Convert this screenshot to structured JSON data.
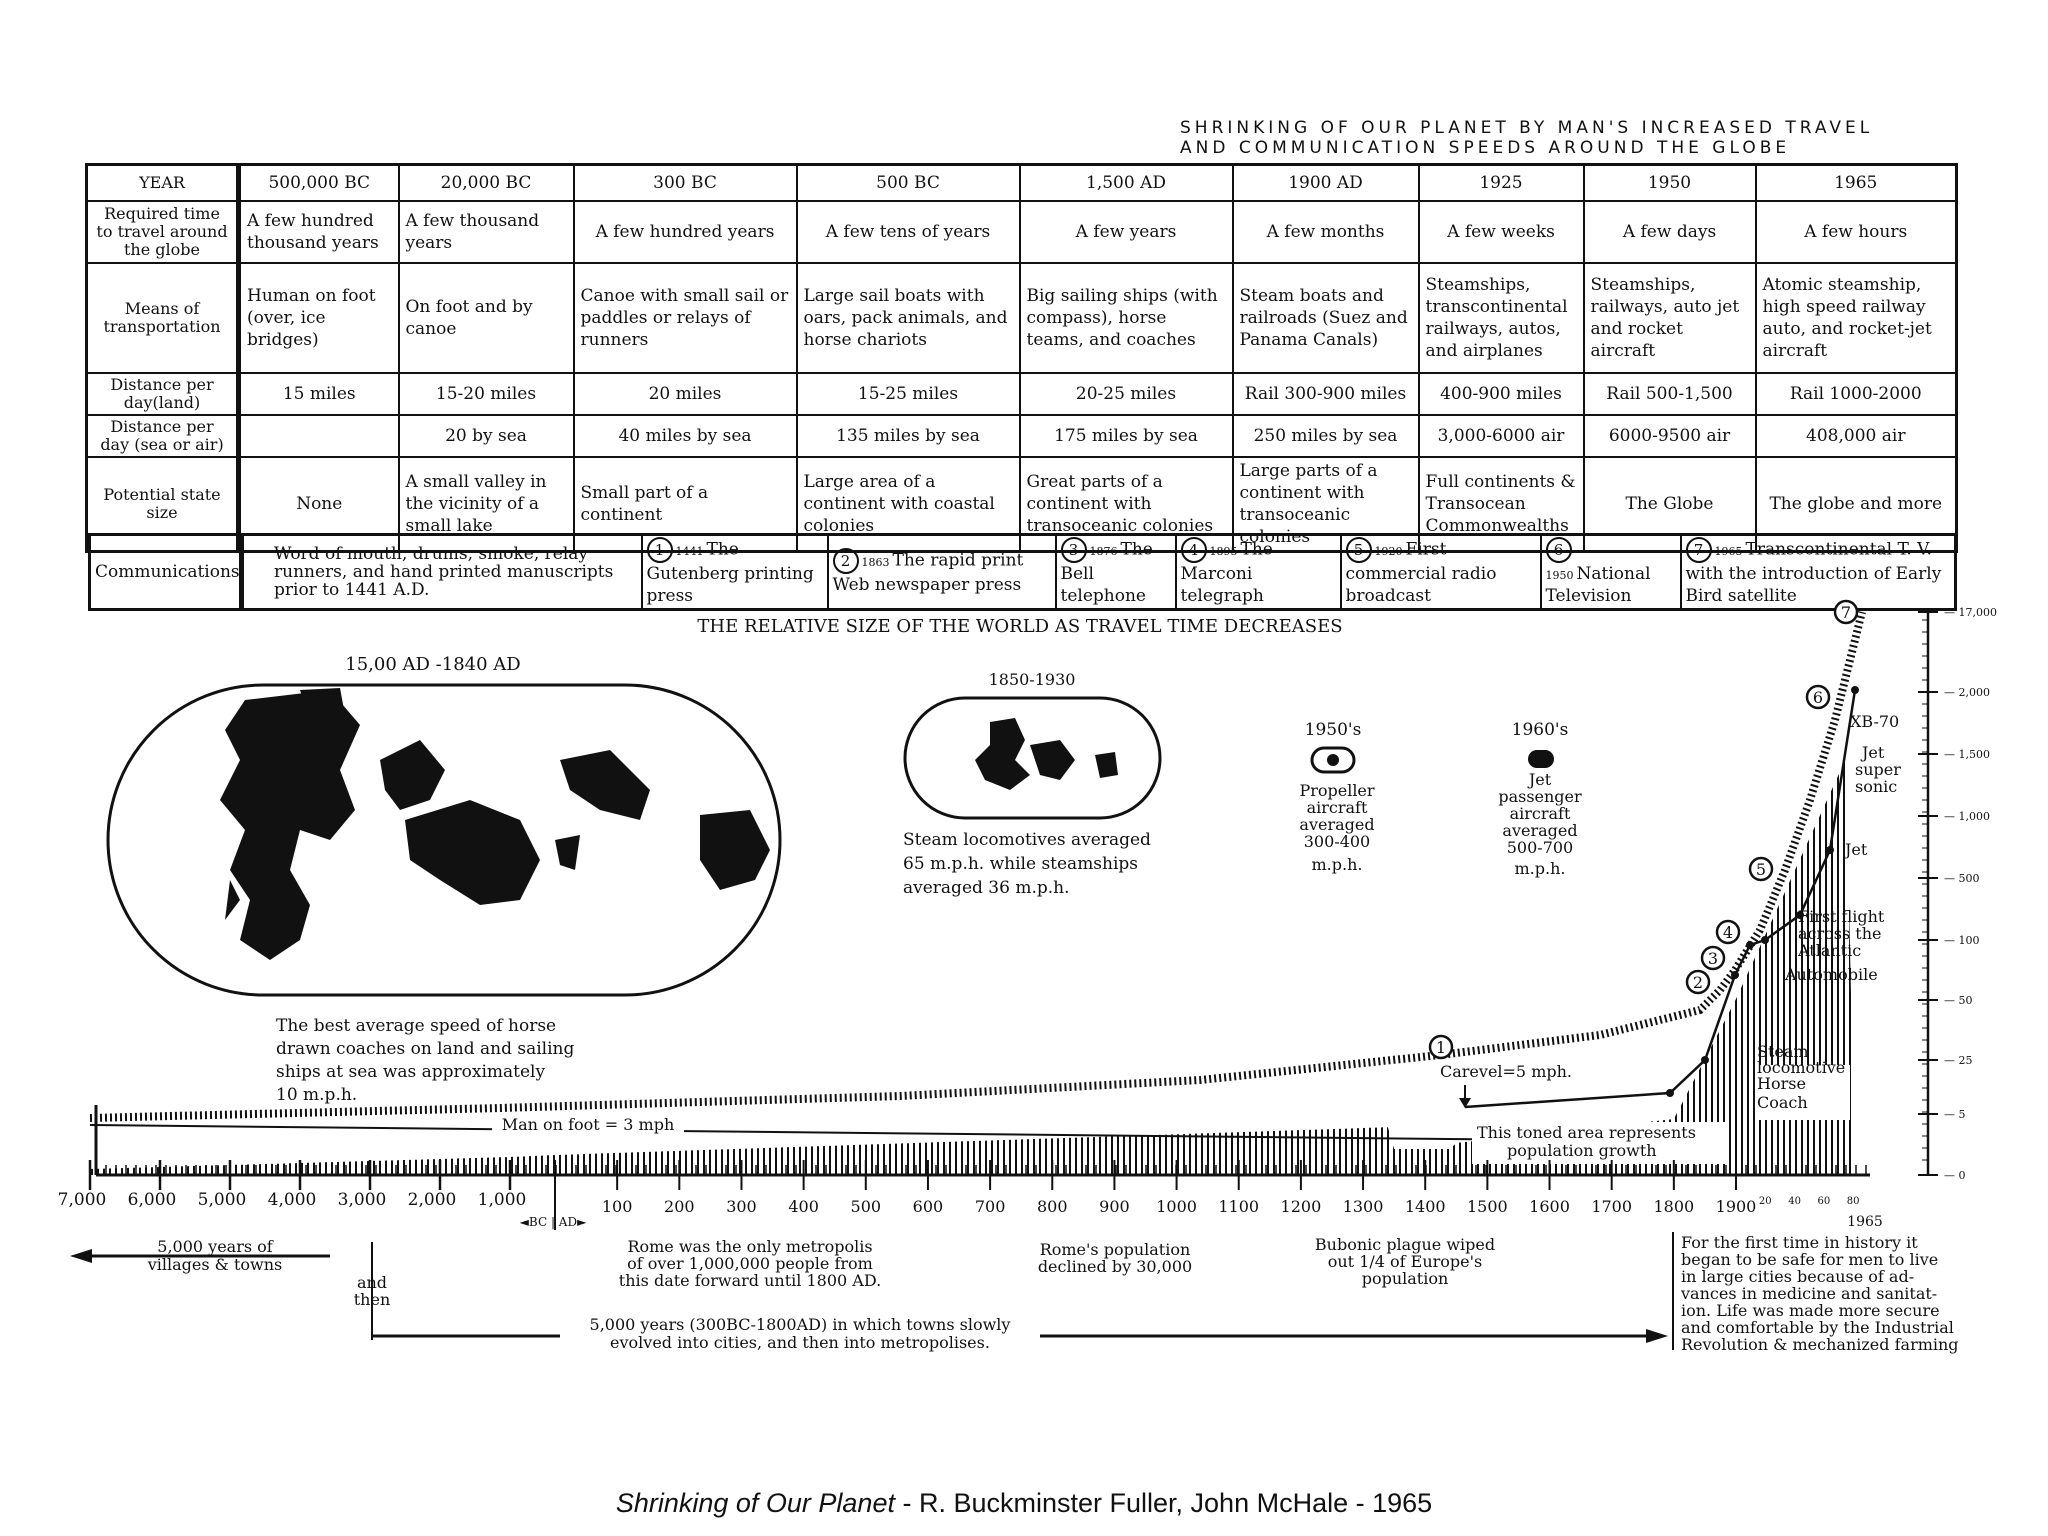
{
  "header": {
    "line1": "SHRINKING OF OUR PLANET BY MAN'S INCREASED TRAVEL",
    "line2": "AND COMMUNICATION SPEEDS AROUND THE GLOBE"
  },
  "table": {
    "corner": "YEAR",
    "years": [
      "500,000 BC",
      "20,000 BC",
      "300 BC",
      "500 BC",
      "1,500 AD",
      "1900 AD",
      "1925",
      "1950",
      "1965"
    ],
    "rows": [
      {
        "label": "Required time to travel around the globe",
        "cells": [
          "A few hundred thousand years",
          "A few thousand years",
          "A few hundred years",
          "A few tens of years",
          "A few years",
          "A few months",
          "A few weeks",
          "A few days",
          "A few hours"
        ]
      },
      {
        "label": "Means of transportation",
        "cells": [
          "Human on foot (over, ice bridges)",
          "On foot and by canoe",
          "Canoe with small sail or paddles or relays of runners",
          "Large sail boats with oars, pack animals, and horse chariots",
          "Big sailing ships (with compass), horse teams, and coaches",
          "Steam boats and railroads (Suez and Panama Canals)",
          "Steamships, transcontinental railways, autos, and airplanes",
          "Steamships, railways, auto jet and rocket aircraft",
          "Atomic steamship, high speed railway auto, and rocket-jet aircraft"
        ]
      },
      {
        "label": "Distance per day(land)",
        "cells": [
          "15 miles",
          "15-20 miles",
          "20 miles",
          "15-25 miles",
          "20-25 miles",
          "Rail 300-900 miles",
          "400-900 miles",
          "Rail 500-1,500",
          "Rail 1000-2000"
        ]
      },
      {
        "label": "Distance per day (sea or air)",
        "cells": [
          "",
          "20 by sea",
          "40 miles by sea",
          "135 miles by sea",
          "175 miles by sea",
          "250 miles by sea",
          "3,000-6000 air",
          "6000-9500 air",
          "408,000 air"
        ]
      },
      {
        "label": "Potential state size",
        "cells": [
          "None",
          "A small valley in the vicinity of a small lake",
          "Small part of a continent",
          "Large area of a continent with coastal colonies",
          "Great parts of a continent with transoceanic colonies",
          "Large parts of a continent with transoceanic colonies",
          "Full continents & Transocean Commonwealths",
          "The Globe",
          "The globe and more"
        ]
      }
    ]
  },
  "communications": {
    "label": "Communications",
    "first": "Word of mouth, drums, smoke, relay runners, and hand printed manuscripts prior to 1441 A.D.",
    "items": [
      {
        "num": "1",
        "year": "1441",
        "text": "The Gutenberg printing press"
      },
      {
        "num": "2",
        "year": "1863",
        "text": "The rapid print Web newspaper press"
      },
      {
        "num": "3",
        "year": "1876",
        "text": "The Bell telephone"
      },
      {
        "num": "4",
        "year": "1895",
        "text": "The Marconi telegraph"
      },
      {
        "num": "5",
        "year": "1920",
        "text": "First commercial radio broadcast"
      },
      {
        "num": "6",
        "year": "1950",
        "text": "National Television"
      },
      {
        "num": "7",
        "year": "1965",
        "text": "Transcontinental T. V. with the introduction of Early Bird satellite"
      }
    ]
  },
  "world": {
    "title": "THE RELATIVE SIZE OF THE WORLD AS TRAVEL TIME DECREASES",
    "map1_label": "15,00 AD -1840 AD",
    "map1_caption": [
      "The best average speed of horse",
      "drawn coaches on land and sailing",
      "ships at sea was approximately",
      "10 m.p.h."
    ],
    "map2_label": "1850-1930",
    "map2_caption": [
      "Steam locomotives averaged",
      "65 m.p.h. while steamships",
      "averaged 36 m.p.h."
    ],
    "p1950_label": "1950's",
    "p1950_caption": [
      "Propeller",
      "aircraft",
      "averaged",
      "300-400",
      "m.p.h."
    ],
    "p1960_label": "1960's",
    "p1960_caption": [
      "Jet",
      "passenger",
      "aircraft",
      "averaged",
      "500-700",
      "m.p.h."
    ]
  },
  "chart_data": {
    "type": "line",
    "y_ticks": [
      "17,000",
      "2,000",
      "1,500",
      "1,000",
      "500",
      "100",
      "50",
      "25",
      "5",
      "0"
    ],
    "x_ticks_bc": [
      "7,000",
      "6,000",
      "5,000",
      "4,000",
      "3,000",
      "2,000",
      "1,000"
    ],
    "x_ticks_ad": [
      "100",
      "200",
      "300",
      "400",
      "500",
      "600",
      "700",
      "800",
      "900",
      "1000",
      "1100",
      "1200",
      "1300",
      "1400",
      "1500",
      "1600",
      "1700",
      "1800",
      "1900"
    ],
    "x_ticks_small": [
      "20",
      "40",
      "60",
      "80"
    ],
    "x_marker": "1965",
    "bc_ad_label": "◄BC | AD►",
    "annotations": {
      "man_on_foot": "Man on foot = 3 mph",
      "carevel": "Carevel=5 mph.",
      "toned_area": [
        "This toned area represents",
        "population growth"
      ],
      "horse": "Horse",
      "coach": "Coach",
      "steam": "Steam",
      "locomotive": "locomotive",
      "automobile": "Automobile",
      "first_flight": [
        "First flight",
        "across the",
        "Atlantic"
      ],
      "jet": "Jet",
      "jet_super": [
        "Jet",
        "super",
        "sonic"
      ],
      "xb70": "XB-70"
    },
    "series": [
      {
        "name": "Man on foot = 3 mph",
        "x": [
          -7000,
          1500
        ],
        "y": [
          3,
          3
        ]
      },
      {
        "name": "Carevel=5 mph.",
        "x": [
          1500,
          1800,
          1850,
          1900,
          1925,
          1950,
          1960,
          1965
        ],
        "y": [
          5,
          10,
          25,
          65,
          100,
          300,
          700,
          2000
        ]
      }
    ]
  },
  "timeline": {
    "villages": [
      "5,000 years of",
      "villages & towns"
    ],
    "and_then": [
      "and",
      "then"
    ],
    "cities": [
      "5,000 years (300BC-1800AD) in which towns slowly",
      "evolved into cities, and then into metropolises."
    ],
    "rome": [
      "Rome was the only metropolis",
      "of over 1,000,000 people from",
      "this date forward until 1800 AD."
    ],
    "rome_pop": [
      "Rome's population",
      "declined by 30,000"
    ],
    "plague": [
      "Bubonic plague wiped",
      "out 1/4 of Europe's",
      "population"
    ],
    "safe": [
      "For the first time in history it",
      "began to be safe for men to live",
      "in large cities because of ad-",
      "vances in medicine and sanitat-",
      "ion. Life was made more secure",
      "and comfortable by the Industrial",
      "Revolution & mechanized farming"
    ]
  },
  "caption": {
    "title": "Shrinking of Our Planet",
    "rest": " - R. Buckminster Fuller, John McHale - 1965"
  }
}
